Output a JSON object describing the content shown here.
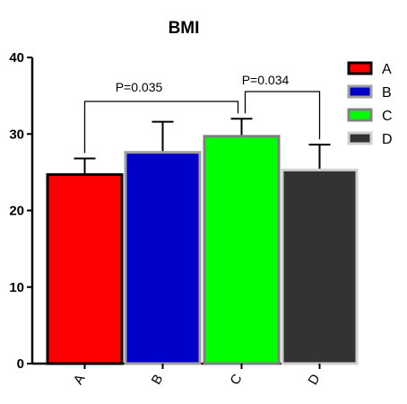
{
  "chart_data": {
    "type": "bar",
    "title": "BMI",
    "xlabel": "",
    "ylabel": "",
    "ylim": [
      0,
      40
    ],
    "yticks": [
      0,
      10,
      20,
      30,
      40
    ],
    "categories": [
      "A",
      "B",
      "C",
      "D"
    ],
    "values": [
      24.7,
      27.6,
      29.7,
      25.3
    ],
    "error_upper": [
      26.8,
      31.6,
      32.0,
      28.6
    ],
    "colors": [
      "#ff0000",
      "#0000c8",
      "#00ff00",
      "#333333"
    ],
    "border_colors": [
      "#000000",
      "#a0a0a0",
      "#808080",
      "#d0d0d0"
    ],
    "annotations": [
      {
        "text": "P=0.035",
        "from": "A",
        "to": "C"
      },
      {
        "text": "P=0.034",
        "from": "C",
        "to": "D"
      }
    ],
    "legend": {
      "position": "top-right",
      "entries": [
        "A",
        "B",
        "C",
        "D"
      ]
    },
    "grid": false
  }
}
